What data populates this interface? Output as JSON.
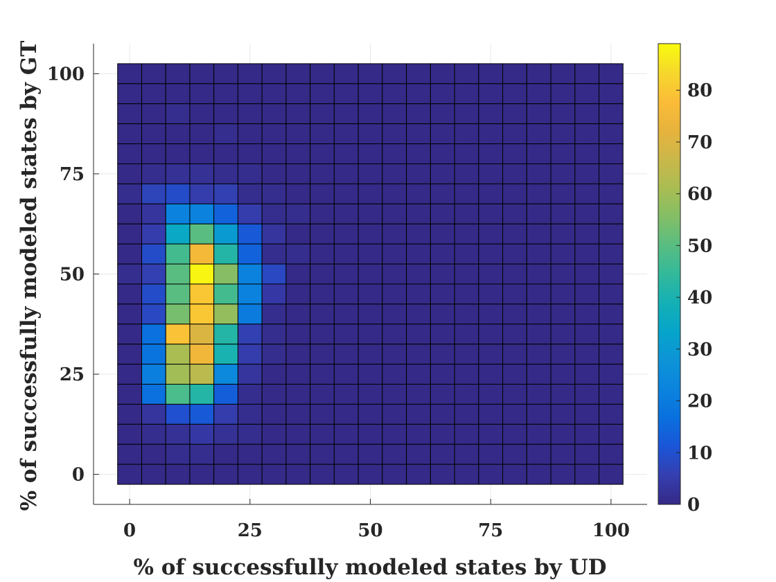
{
  "chart_data": {
    "type": "heatmap",
    "title": "",
    "xlabel": "% of successfully modeled states by UD",
    "ylabel": "% of successfully modeled states by GT",
    "x_range": [
      -7.5,
      107.5
    ],
    "y_range": [
      -7.5,
      107.5
    ],
    "x_ticks": [
      0,
      25,
      50,
      75,
      100
    ],
    "y_ticks": [
      0,
      25,
      50,
      75,
      100
    ],
    "cell_bounds": [
      -2.5,
      102.5
    ],
    "grid": true,
    "colorbar": {
      "min": 0,
      "max": 89,
      "ticks": [
        0,
        10,
        20,
        30,
        40,
        50,
        60,
        70,
        80
      ],
      "colormap": "parula"
    },
    "values_note": "rows listed from top (y = 100) to bottom (y = 0); columns from x = 0 to x = 100 in steps of 5",
    "values": [
      [
        0,
        0,
        0,
        0,
        0,
        0,
        0,
        0,
        0,
        0,
        0,
        0,
        0,
        0,
        0,
        0,
        0,
        0,
        0,
        0,
        0
      ],
      [
        0,
        0,
        0,
        0,
        0,
        0,
        0,
        0,
        0,
        0,
        0,
        0,
        0,
        0,
        0,
        0,
        0,
        0,
        0,
        0,
        0
      ],
      [
        0,
        0,
        1,
        0,
        0,
        0,
        0,
        0,
        0,
        0,
        0,
        0,
        0,
        0,
        0,
        0,
        0,
        0,
        0,
        0,
        0
      ],
      [
        0,
        0,
        0,
        0,
        1,
        0,
        0,
        0,
        0,
        0,
        0,
        0,
        0,
        0,
        0,
        0,
        0,
        0,
        0,
        0,
        0
      ],
      [
        0,
        0,
        0,
        0,
        0,
        0,
        0,
        0,
        0,
        0,
        0,
        0,
        0,
        0,
        0,
        0,
        0,
        0,
        0,
        0,
        0
      ],
      [
        0,
        1,
        2,
        2,
        1,
        1,
        0,
        0,
        0,
        0,
        0,
        0,
        0,
        0,
        0,
        0,
        0,
        0,
        0,
        0,
        0
      ],
      [
        1,
        7,
        9,
        5,
        6,
        1,
        1,
        0,
        0,
        0,
        0,
        0,
        0,
        0,
        0,
        0,
        0,
        0,
        0,
        0,
        0
      ],
      [
        0,
        3,
        22,
        22,
        14,
        5,
        1,
        1,
        0,
        0,
        0,
        0,
        0,
        0,
        0,
        0,
        0,
        0,
        0,
        0,
        0
      ],
      [
        0,
        5,
        35,
        50,
        30,
        12,
        3,
        0,
        0,
        0,
        0,
        0,
        0,
        0,
        0,
        0,
        0,
        0,
        0,
        0,
        0
      ],
      [
        0,
        9,
        47,
        76,
        42,
        14,
        1,
        1,
        0,
        0,
        0,
        0,
        0,
        0,
        0,
        0,
        0,
        0,
        0,
        0,
        0
      ],
      [
        1,
        6,
        50,
        88,
        56,
        22,
        8,
        0,
        0,
        0,
        0,
        0,
        0,
        0,
        0,
        0,
        0,
        0,
        0,
        0,
        0
      ],
      [
        0,
        9,
        50,
        80,
        47,
        22,
        4,
        0,
        0,
        0,
        0,
        0,
        0,
        0,
        0,
        0,
        0,
        0,
        0,
        0,
        0
      ],
      [
        0,
        8,
        54,
        80,
        58,
        20,
        1,
        0,
        0,
        0,
        0,
        0,
        0,
        0,
        0,
        0,
        0,
        0,
        0,
        0,
        0
      ],
      [
        0,
        17,
        79,
        70,
        42,
        6,
        1,
        0,
        0,
        0,
        0,
        0,
        0,
        0,
        0,
        0,
        0,
        0,
        0,
        0,
        0
      ],
      [
        0,
        18,
        61,
        75,
        40,
        5,
        1,
        0,
        0,
        0,
        0,
        0,
        0,
        0,
        0,
        0,
        0,
        0,
        0,
        0,
        0
      ],
      [
        0,
        21,
        60,
        64,
        24,
        3,
        0,
        0,
        0,
        0,
        0,
        0,
        0,
        0,
        0,
        0,
        0,
        0,
        0,
        0,
        0
      ],
      [
        0,
        17,
        48,
        42,
        13,
        1,
        0,
        0,
        0,
        0,
        0,
        0,
        0,
        0,
        0,
        0,
        0,
        0,
        0,
        0,
        0
      ],
      [
        0,
        3,
        10,
        12,
        5,
        1,
        0,
        0,
        0,
        0,
        0,
        0,
        0,
        0,
        0,
        0,
        0,
        0,
        0,
        0,
        0
      ],
      [
        0,
        1,
        2,
        4,
        2,
        1,
        0,
        0,
        0,
        0,
        0,
        0,
        0,
        0,
        0,
        0,
        0,
        0,
        0,
        0,
        0
      ],
      [
        0,
        0,
        1,
        1,
        0,
        0,
        0,
        0,
        0,
        0,
        0,
        0,
        0,
        0,
        0,
        0,
        0,
        0,
        0,
        0,
        0
      ],
      [
        0,
        0,
        0,
        0,
        0,
        0,
        0,
        0,
        0,
        0,
        0,
        0,
        0,
        0,
        0,
        0,
        0,
        0,
        0,
        0,
        0
      ]
    ]
  }
}
